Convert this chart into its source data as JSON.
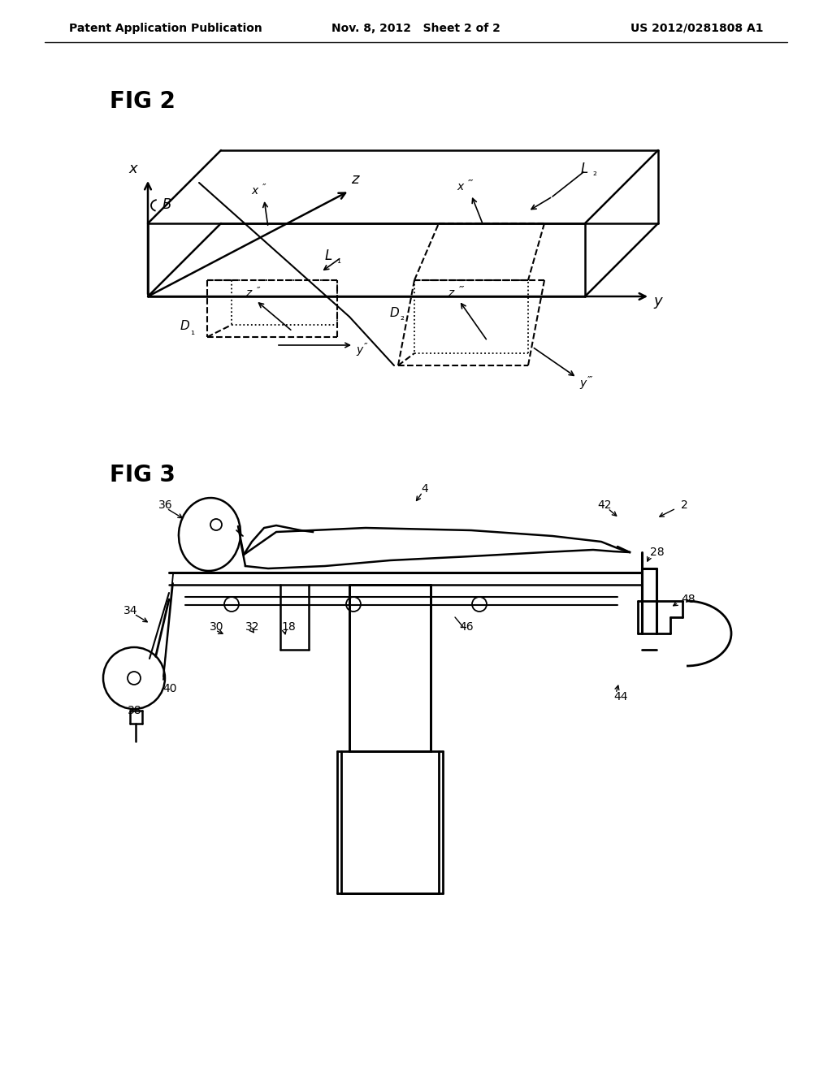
{
  "header_left": "Patent Application Publication",
  "header_center": "Nov. 8, 2012   Sheet 2 of 2",
  "header_right": "US 2012/0281808 A1",
  "fig2_label": "FIG 2",
  "fig3_label": "FIG 3",
  "bg_color": "#ffffff"
}
